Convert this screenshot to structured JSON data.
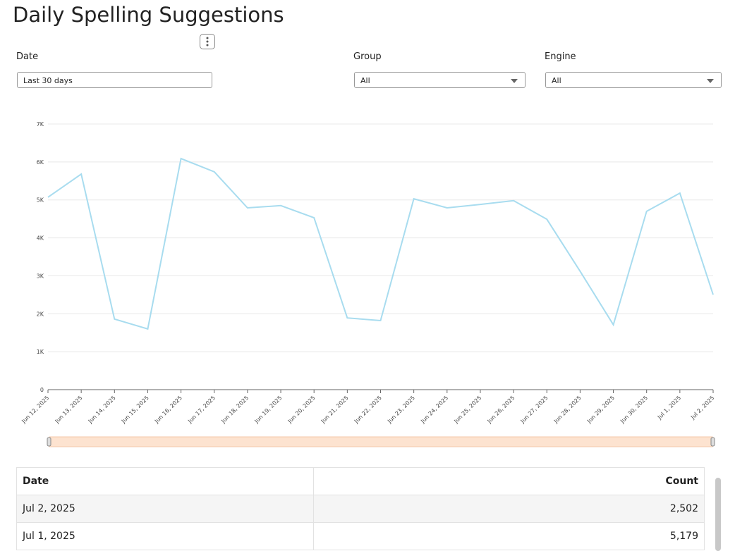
{
  "header": {
    "title": "Daily Spelling Suggestions"
  },
  "filters": [
    {
      "label": "Date",
      "value": "Last 30 days"
    },
    {
      "label": "Group",
      "value": "All"
    },
    {
      "label": "Engine",
      "value": "All"
    }
  ],
  "chart_data": {
    "type": "line",
    "categories": [
      "Jun 12, 2025",
      "Jun 13, 2025",
      "Jun 14, 2025",
      "Jun 15, 2025",
      "Jun 16, 2025",
      "Jun 17, 2025",
      "Jun 18, 2025",
      "Jun 19, 2025",
      "Jun 20, 2025",
      "Jun 21, 2025",
      "Jun 22, 2025",
      "Jun 23, 2025",
      "Jun 24, 2025",
      "Jun 25, 2025",
      "Jun 26, 2025",
      "Jun 27, 2025",
      "Jun 28, 2025",
      "Jun 29, 2025",
      "Jun 30, 2025",
      "Jul 1, 2025",
      "Jul 2, 2025"
    ],
    "values": [
      5070,
      5680,
      1860,
      1600,
      6090,
      5740,
      4790,
      4850,
      4530,
      1890,
      1820,
      5030,
      4790,
      4880,
      4980,
      4490,
      3120,
      1710,
      4700,
      5179,
      2502
    ],
    "color": "#a8dcef",
    "ylim": [
      0,
      7000
    ],
    "yticks": [
      0,
      {
        "value": 1000,
        "label": "1K"
      },
      {
        "value": 2000,
        "label": "2K"
      },
      {
        "value": 3000,
        "label": "3K"
      },
      {
        "value": 4000,
        "label": "4K"
      },
      {
        "value": 5000,
        "label": "5K"
      },
      {
        "value": 6000,
        "label": "6K"
      },
      {
        "value": 7000,
        "label": "7K"
      }
    ],
    "grid": true
  },
  "table": {
    "columns": [
      "Date",
      "Count"
    ],
    "rows": [
      [
        "Jul 2, 2025",
        "2,502"
      ],
      [
        "Jul 1, 2025",
        "5,179"
      ]
    ]
  }
}
